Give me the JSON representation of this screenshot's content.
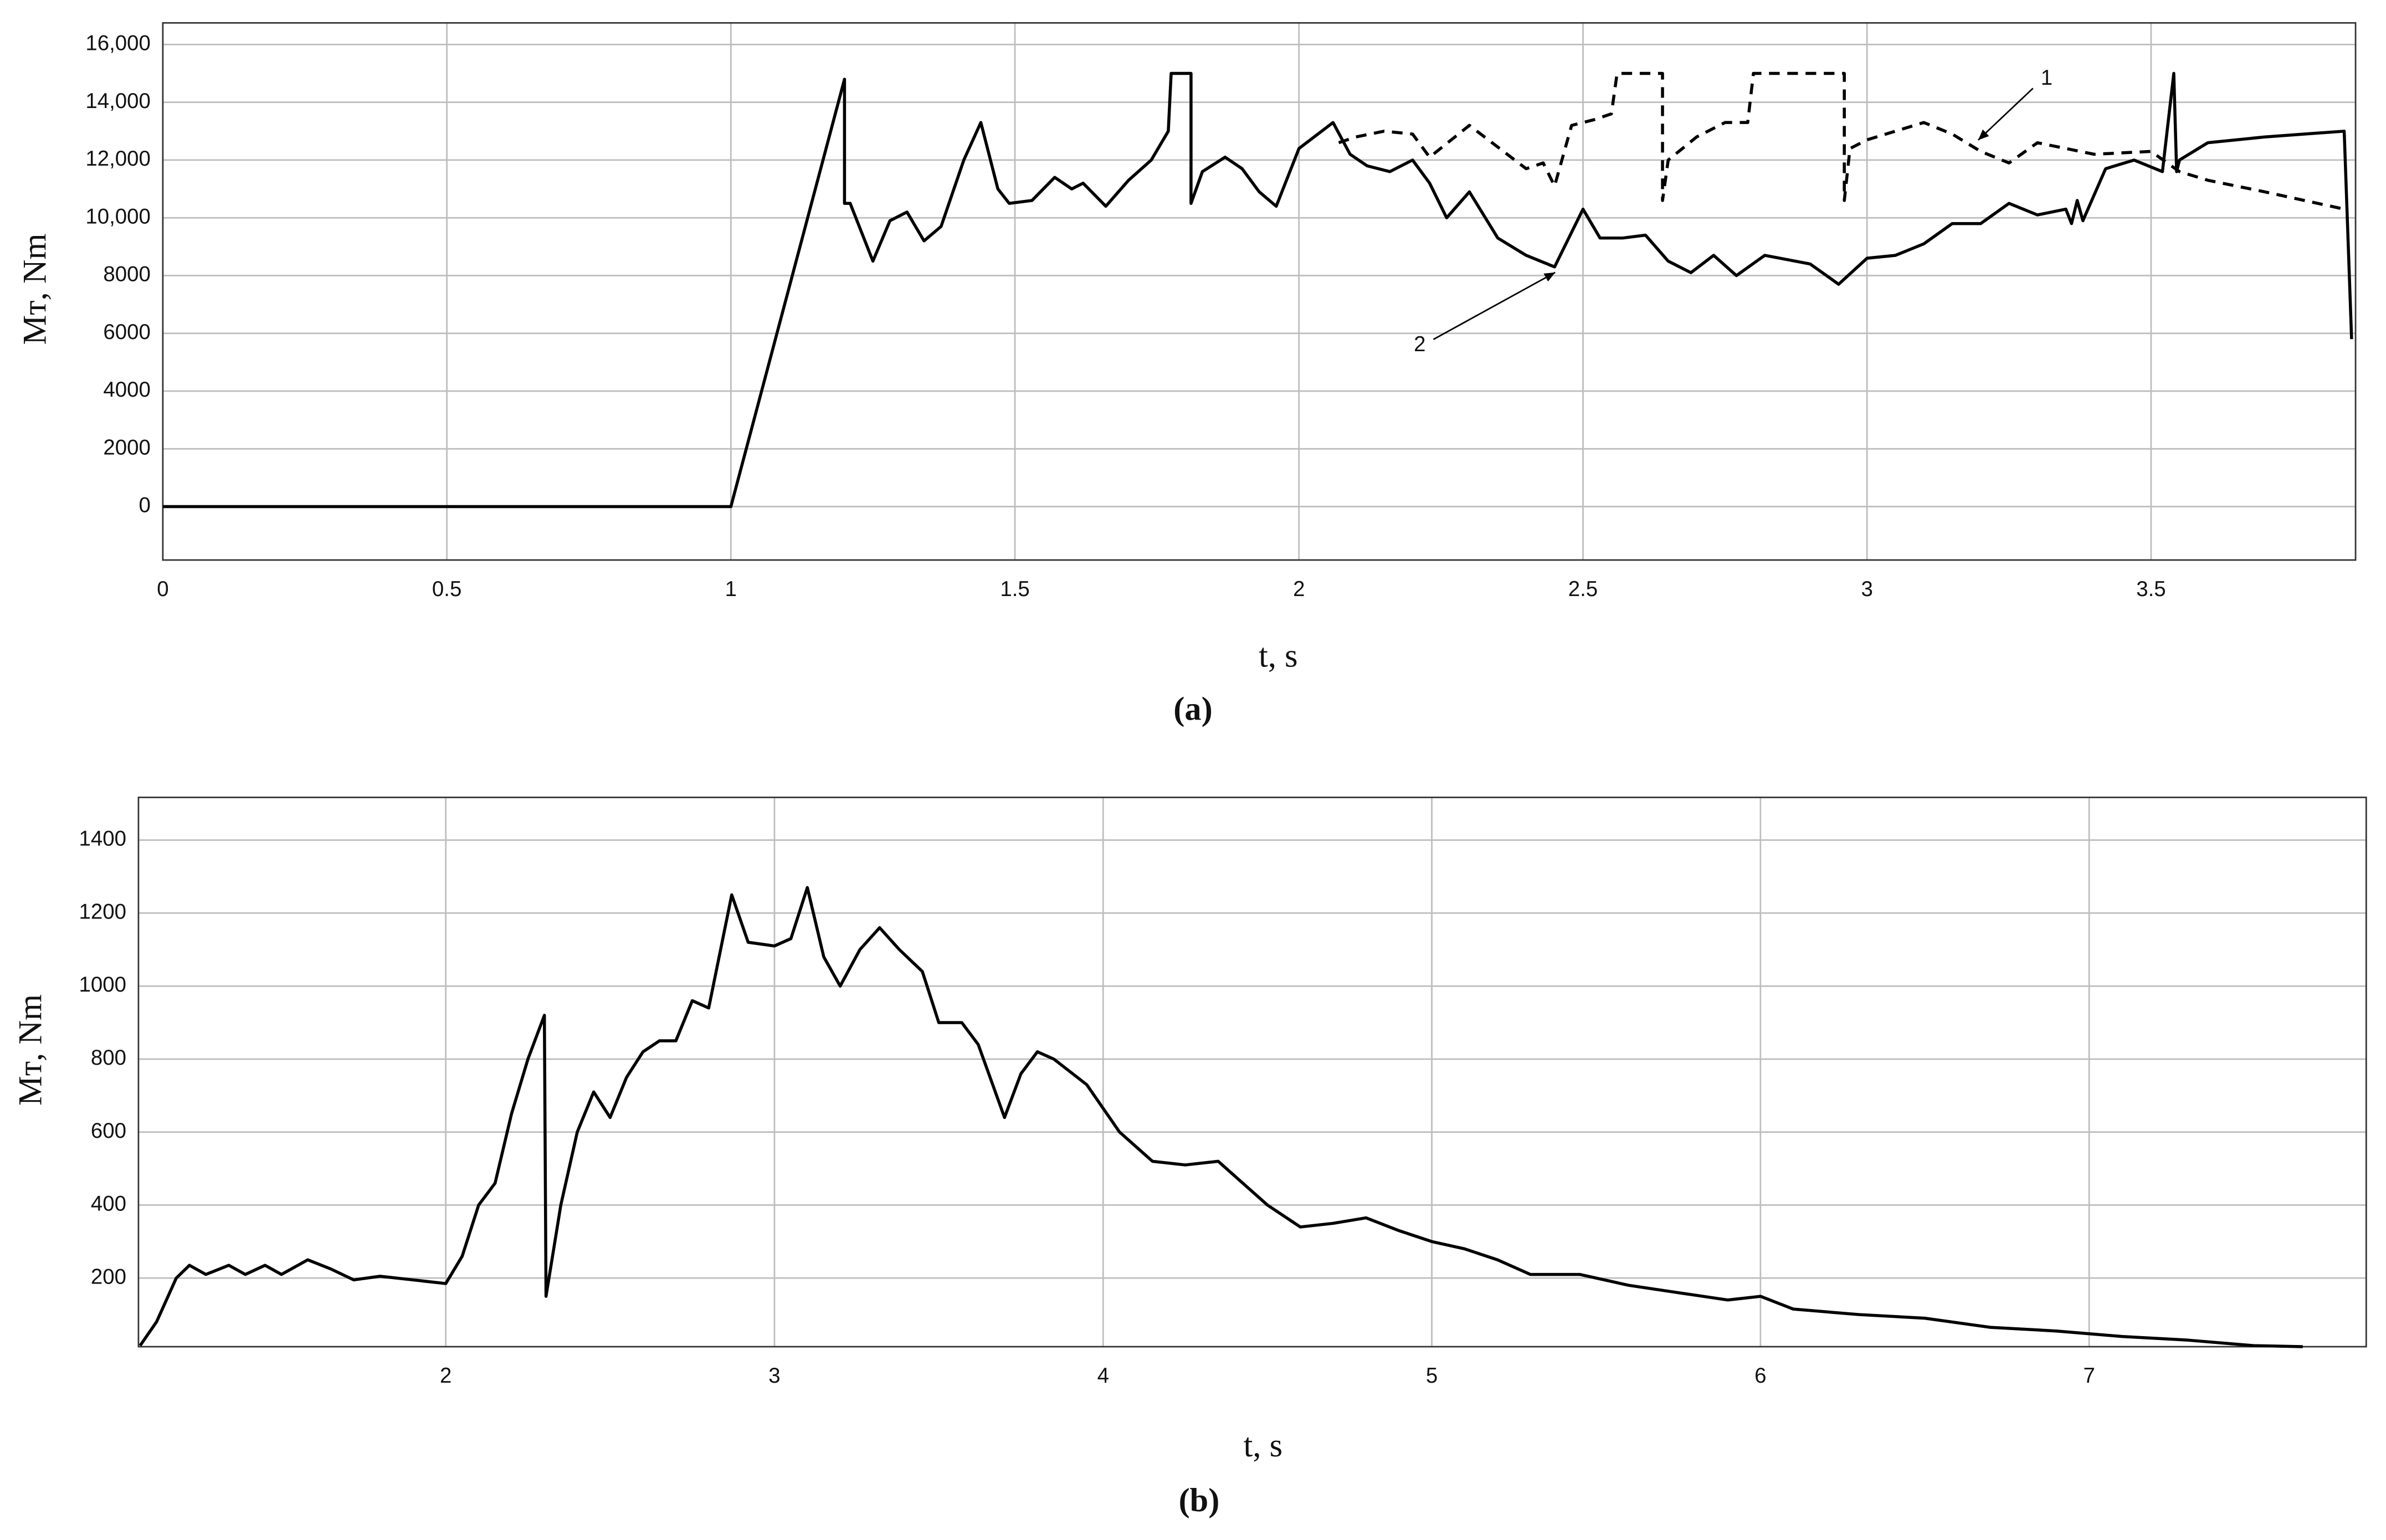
{
  "chart_data": [
    {
      "type": "line",
      "xlabel": "t, s",
      "ylabel": "Mᴛ, Nm",
      "caption": "(a)",
      "xlim": [
        0,
        3.86
      ],
      "xticks": [
        0,
        0.5,
        1,
        1.5,
        2,
        2.5,
        3,
        3.5
      ],
      "ylim": [
        -1850,
        16750
      ],
      "yticks": [
        0,
        2000,
        4000,
        6000,
        8000,
        {
          "value": 10000,
          "label": "10,000"
        },
        {
          "value": 12000,
          "label": "12,000"
        },
        {
          "value": 14000,
          "label": "14,000"
        },
        {
          "value": 16000,
          "label": "16,000"
        }
      ],
      "grid": true,
      "series": [
        {
          "name": "1",
          "color": "#000000",
          "dash": "dashed",
          "x": [
            2.07,
            2.1,
            2.15,
            2.2,
            2.23,
            2.3,
            2.36,
            2.4,
            2.43,
            2.45,
            2.48,
            2.52,
            2.55,
            2.56,
            2.64,
            2.64,
            2.65,
            2.7,
            2.75,
            2.79,
            2.8,
            2.96,
            2.96,
            2.97,
            3.0,
            3.1,
            3.15,
            3.2,
            3.25,
            3.3,
            3.4,
            3.5,
            3.55,
            3.6,
            3.7,
            3.84
          ],
          "values": [
            12600,
            12800,
            13000,
            12900,
            12100,
            13200,
            12300,
            11700,
            11900,
            11100,
            13200,
            13400,
            13600,
            15000,
            15000,
            10600,
            12000,
            12800,
            13300,
            13300,
            15000,
            15000,
            10600,
            12400,
            12700,
            13300,
            12900,
            12300,
            11900,
            12600,
            12200,
            12300,
            11600,
            11300,
            10900,
            10300
          ]
        },
        {
          "name": "2",
          "color": "#000000",
          "dash": "solid",
          "x": [
            0,
            1,
            1.2,
            1.2,
            1.21,
            1.25,
            1.28,
            1.31,
            1.34,
            1.37,
            1.41,
            1.44,
            1.47,
            1.49,
            1.53,
            1.57,
            1.6,
            1.62,
            1.66,
            1.7,
            1.74,
            1.77,
            1.775,
            1.81,
            1.81,
            1.83,
            1.87,
            1.9,
            1.93,
            1.96,
            2.0,
            2.04,
            2.06,
            2.09,
            2.12,
            2.16,
            2.2,
            2.23,
            2.26,
            2.3,
            2.35,
            2.4,
            2.45,
            2.5,
            2.53,
            2.57,
            2.61,
            2.65,
            2.69,
            2.73,
            2.77,
            2.82,
            2.9,
            2.95,
            3.0,
            3.05,
            3.1,
            3.15,
            3.2,
            3.25,
            3.3,
            3.35,
            3.36,
            3.37,
            3.38,
            3.42,
            3.47,
            3.52,
            3.54,
            3.545,
            3.55,
            3.6,
            3.7,
            3.84,
            3.853
          ],
          "values": [
            0,
            0,
            14800,
            10500,
            10500,
            8500,
            9900,
            10200,
            9200,
            9700,
            12000,
            13300,
            11000,
            10500,
            10600,
            11400,
            11000,
            11200,
            10400,
            11300,
            12000,
            13000,
            15000,
            15000,
            10500,
            11600,
            12100,
            11700,
            10900,
            10400,
            12400,
            13000,
            13300,
            12200,
            11800,
            11600,
            12000,
            11200,
            10000,
            10900,
            9300,
            8700,
            8300,
            10300,
            9300,
            9300,
            9400,
            8500,
            8100,
            8700,
            8000,
            8700,
            8400,
            7700,
            8600,
            8700,
            9100,
            9800,
            9800,
            10500,
            10100,
            10300,
            9800,
            10600,
            9900,
            11700,
            12000,
            11600,
            15000,
            11600,
            12000,
            12600,
            12800,
            13000,
            5800
          ]
        }
      ]
    },
    {
      "type": "line",
      "xlabel": "t, s",
      "ylabel": "Mᴛ, Nm",
      "caption": "(b)",
      "xlim": [
        1.065,
        7.843
      ],
      "xticks": [
        2,
        3,
        4,
        5,
        6,
        7
      ],
      "ylim": [
        12,
        1517
      ],
      "yticks": [
        200,
        400,
        600,
        800,
        1000,
        1200,
        1400
      ],
      "grid": true,
      "series": [
        {
          "color": "#000000",
          "dash": "solid",
          "x": [
            1.07,
            1.12,
            1.18,
            1.22,
            1.27,
            1.34,
            1.39,
            1.45,
            1.5,
            1.58,
            1.65,
            1.72,
            1.8,
            1.9,
            2.0,
            2.05,
            2.1,
            2.15,
            2.2,
            2.25,
            2.3,
            2.305,
            2.35,
            2.4,
            2.45,
            2.5,
            2.55,
            2.6,
            2.65,
            2.7,
            2.75,
            2.8,
            2.87,
            2.92,
            3.0,
            3.05,
            3.1,
            3.15,
            3.2,
            3.26,
            3.32,
            3.38,
            3.45,
            3.5,
            3.57,
            3.62,
            3.7,
            3.75,
            3.8,
            3.85,
            3.95,
            4.05,
            4.15,
            4.25,
            4.35,
            4.4,
            4.5,
            4.6,
            4.7,
            4.8,
            4.9,
            5.0,
            5.1,
            5.2,
            5.3,
            5.45,
            5.6,
            5.75,
            5.9,
            6.0,
            6.1,
            6.3,
            6.5,
            6.7,
            6.9,
            7.1,
            7.3,
            7.5,
            7.65
          ],
          "values": [
            15,
            80,
            200,
            235,
            210,
            235,
            210,
            235,
            210,
            250,
            225,
            195,
            205,
            195,
            185,
            260,
            400,
            460,
            650,
            800,
            920,
            150,
            400,
            600,
            710,
            640,
            750,
            820,
            850,
            850,
            960,
            940,
            1250,
            1120,
            1110,
            1130,
            1270,
            1080,
            1000,
            1100,
            1160,
            1100,
            1040,
            900,
            900,
            840,
            640,
            760,
            820,
            800,
            730,
            600,
            520,
            510,
            520,
            480,
            400,
            340,
            350,
            365,
            330,
            300,
            280,
            250,
            210,
            210,
            180,
            160,
            140,
            150,
            115,
            100,
            90,
            65,
            55,
            40,
            30,
            15,
            12
          ]
        }
      ]
    }
  ]
}
